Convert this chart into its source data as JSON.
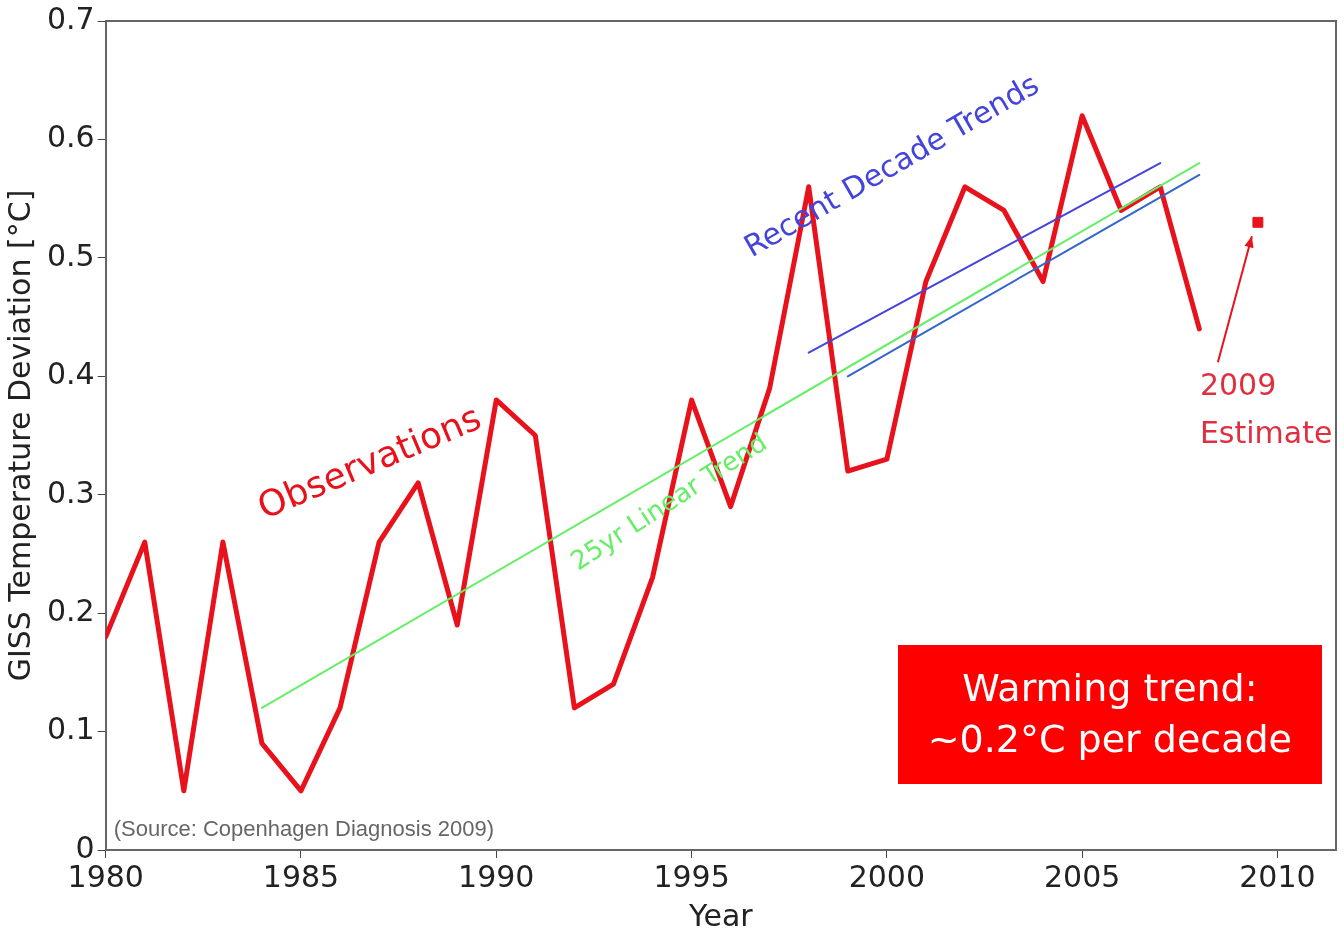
{
  "chart_data": {
    "type": "line",
    "xlabel": "Year",
    "ylabel": "GISS Temperature Deviation [°C]",
    "xlim": [
      1980,
      2011.5
    ],
    "xticks": [
      1980,
      1985,
      1990,
      1995,
      2000,
      2005,
      2010
    ],
    "ylim": [
      0,
      0.7
    ],
    "yticks": [
      0,
      0.1,
      0.2,
      0.3,
      0.4,
      0.5,
      0.6,
      0.7
    ],
    "grid": false,
    "legend": false,
    "marker": "none",
    "line_style": "solid",
    "series": [
      {
        "name": "Observations",
        "color": "#e8121c",
        "x": [
          1980,
          1981,
          1982,
          1983,
          1984,
          1985,
          1986,
          1987,
          1988,
          1989,
          1990,
          1991,
          1992,
          1993,
          1994,
          1995,
          1996,
          1997,
          1998,
          1999,
          2000,
          2001,
          2002,
          2003,
          2004,
          2005,
          2006,
          2007,
          2008
        ],
        "values": [
          0.18,
          0.26,
          0.05,
          0.26,
          0.09,
          0.05,
          0.12,
          0.26,
          0.31,
          0.19,
          0.38,
          0.35,
          0.12,
          0.14,
          0.23,
          0.38,
          0.29,
          0.39,
          0.56,
          0.32,
          0.33,
          0.48,
          0.56,
          0.54,
          0.48,
          0.62,
          0.54,
          0.56,
          0.44
        ]
      },
      {
        "name": "25yr Linear Trend",
        "color": "#66ee66",
        "x": [
          1984,
          2008
        ],
        "values": [
          0.12,
          0.58
        ]
      },
      {
        "name": "Recent Decade Trends",
        "color": "#4444dd",
        "x": [
          1998,
          2007
        ],
        "values": [
          0.42,
          0.58
        ]
      },
      {
        "color": "#3366cc",
        "x": [
          1999,
          2008
        ],
        "values": [
          0.4,
          0.57
        ]
      },
      {
        "type": "scatter",
        "marker": "square",
        "color": "#e8121c",
        "x": [
          2009.5
        ],
        "values": [
          0.53
        ]
      }
    ],
    "annotations": [
      "(Source: Copenhagen Diagnosis 2009)",
      "Warming trend:\n~0.2°C per decade",
      "2009 Estimate"
    ]
  }
}
